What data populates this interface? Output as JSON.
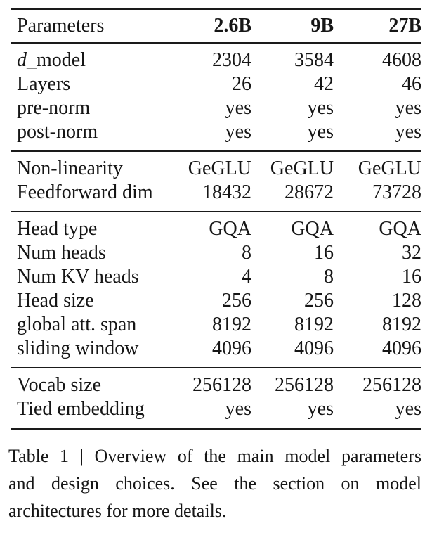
{
  "page": {
    "background": "#ffffff",
    "text_color": "#161616",
    "rule_color": "#1a1a1a"
  },
  "table": {
    "header": {
      "label": "Parameters",
      "columns": [
        "2.6B",
        "9B",
        "27B"
      ]
    },
    "groups": [
      {
        "rows": [
          {
            "label_italic": "d",
            "label": "_model",
            "values": [
              "2304",
              "3584",
              "4608"
            ]
          },
          {
            "label": "Layers",
            "values": [
              "26",
              "42",
              "46"
            ]
          },
          {
            "label": "pre-norm",
            "values": [
              "yes",
              "yes",
              "yes"
            ]
          },
          {
            "label": "post-norm",
            "values": [
              "yes",
              "yes",
              "yes"
            ]
          }
        ]
      },
      {
        "rows": [
          {
            "label": "Non-linearity",
            "values": [
              "GeGLU",
              "GeGLU",
              "GeGLU"
            ]
          },
          {
            "label": "Feedforward dim",
            "values": [
              "18432",
              "28672",
              "73728"
            ]
          }
        ]
      },
      {
        "rows": [
          {
            "label": "Head type",
            "values": [
              "GQA",
              "GQA",
              "GQA"
            ]
          },
          {
            "label": "Num heads",
            "values": [
              "8",
              "16",
              "32"
            ]
          },
          {
            "label": "Num KV heads",
            "values": [
              "4",
              "8",
              "16"
            ]
          },
          {
            "label": "Head size",
            "values": [
              "256",
              "256",
              "128"
            ]
          },
          {
            "label": "global att. span",
            "values": [
              "8192",
              "8192",
              "8192"
            ]
          },
          {
            "label": "sliding window",
            "values": [
              "4096",
              "4096",
              "4096"
            ]
          }
        ]
      },
      {
        "rows": [
          {
            "label": "Vocab size",
            "values": [
              "256128",
              "256128",
              "256128"
            ]
          },
          {
            "label": "Tied embedding",
            "values": [
              "yes",
              "yes",
              "yes"
            ]
          }
        ]
      }
    ]
  },
  "caption": {
    "lines": [
      "Table 1 | Overview of the main model parameters",
      "and design choices. See the section on model",
      "architectures for more details."
    ]
  }
}
